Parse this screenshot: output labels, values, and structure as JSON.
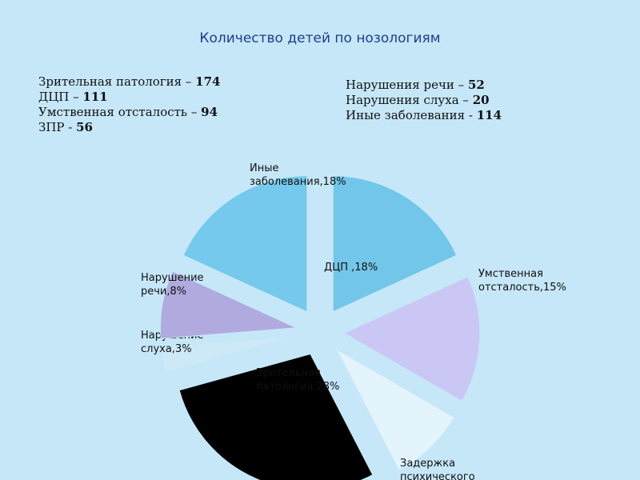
{
  "title": "Количество детей по нозологиям",
  "counts_left": [
    {
      "label": "Зрительная патология – ",
      "value": "174"
    },
    {
      "label": "ДЦП – ",
      "value": "111"
    },
    {
      "label": "Умственная отсталость – ",
      "value": "94"
    },
    {
      "label": "ЗПР - ",
      "value": "56"
    }
  ],
  "counts_right": [
    {
      "label": "Нарушения речи – ",
      "value": "52"
    },
    {
      "label": "Нарушения слуха – ",
      "value": "20"
    },
    {
      "label": "Иные заболевания - ",
      "value": "114"
    }
  ],
  "chart_data": {
    "type": "pie",
    "exploded": true,
    "slices": [
      {
        "label_lines": [
          "ДЦП ,18%"
        ],
        "name": "ДЦП",
        "percent": 18,
        "color": "#72c6ea"
      },
      {
        "label_lines": [
          "Умственная",
          "отсталость,15%"
        ],
        "name": "Умственная отсталость",
        "percent": 15,
        "color": "#cbc7f4"
      },
      {
        "label_lines": [
          "Задержка",
          "психического"
        ],
        "name": "Задержка психического",
        "percent": 9,
        "color": "#e4f4fc"
      },
      {
        "label_lines": [
          "Зрительная",
          "патология,28%"
        ],
        "name": "Зрительная патология",
        "percent": 28,
        "color": "#000000"
      },
      {
        "label_lines": [
          "Нарушение",
          "слуха,3%"
        ],
        "name": "Нарушение слуха",
        "percent": 3,
        "color": "#cde8f6"
      },
      {
        "label_lines": [
          "Нарушение",
          "речи,8%"
        ],
        "name": "Нарушение речи",
        "percent": 8,
        "color": "#b0aadf"
      },
      {
        "label_lines": [
          "Иные",
          "заболевания,18%"
        ],
        "name": "Иные заболевания",
        "percent": 18,
        "color": "#74c9ec"
      }
    ]
  }
}
